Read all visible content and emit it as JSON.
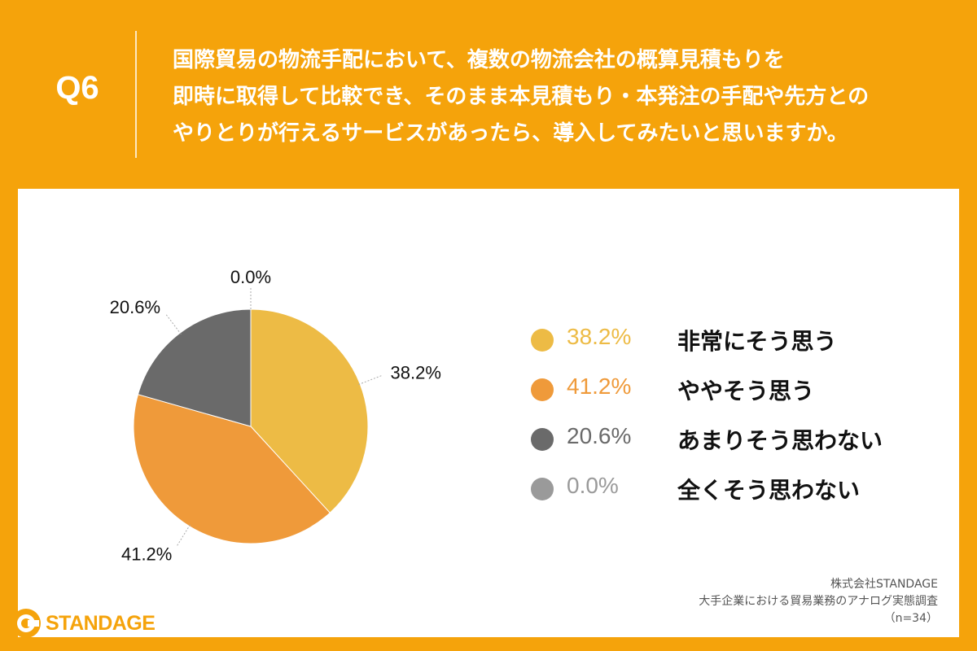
{
  "header": {
    "q_label": "Q6",
    "question_lines": [
      "国際貿易の物流手配において、複数の物流会社の概算見積もりを",
      "即時に取得して比較でき、そのまま本見積もり・本発注の手配や先方との",
      "やりとりが行えるサービスがあったら、導入してみたいと思いますか。"
    ]
  },
  "chart_data": {
    "type": "pie",
    "title": "",
    "slices": [
      {
        "label": "非常にそう思う",
        "value": 38.2,
        "display": "38.2%",
        "color": "#EDBB45"
      },
      {
        "label": "ややそう思う",
        "value": 41.2,
        "display": "41.2%",
        "color": "#EF9A3A"
      },
      {
        "label": "あまりそう思わない",
        "value": 20.6,
        "display": "20.6%",
        "color": "#6A6A6A"
      },
      {
        "label": "全くそう思わない",
        "value": 0.0,
        "display": "0.0%",
        "color": "#9A9A9A"
      }
    ],
    "legend_position": "right"
  },
  "source": {
    "company": "株式会社STANDAGE",
    "survey": "大手企業における貿易業務のアナログ実態調査",
    "n": "（n=34）"
  },
  "logo": {
    "text": "STANDAGE",
    "color": "#F5A30B"
  }
}
